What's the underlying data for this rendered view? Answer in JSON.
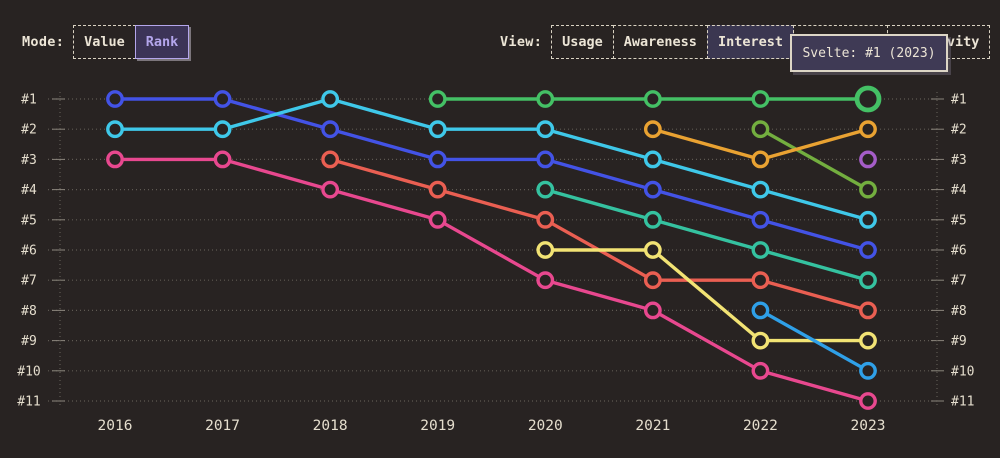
{
  "controls": {
    "mode": {
      "label": "Mode:",
      "options": [
        {
          "label": "Value",
          "selected": false
        },
        {
          "label": "Rank",
          "selected": true
        }
      ]
    },
    "view": {
      "label": "View:",
      "options": [
        {
          "label": "Usage",
          "selected": false
        },
        {
          "label": "Awareness",
          "selected": false
        },
        {
          "label": "Interest",
          "selected": true
        },
        {
          "label": "Retention",
          "selected": false
        },
        {
          "label": "Positivity",
          "selected": false
        }
      ]
    }
  },
  "tooltip": {
    "text": "Svelte: #1 (2023)"
  },
  "theme": {
    "background": "#282322",
    "text": "#ece5d6",
    "accent_purple": "#b4a6ec",
    "selected_mode_bg": "#3c3457",
    "selected_view_bg": "#3b3751",
    "tooltip_bg": "#3f3a55",
    "tooltip_border": "#ddd6c6",
    "gridline": "#5f5a53",
    "axis": "#8a857c"
  },
  "chart_data": {
    "type": "line",
    "subtype": "bump-rank-chart",
    "title": "",
    "xlabel": "",
    "ylabel": "",
    "x": [
      2016,
      2017,
      2018,
      2019,
      2020,
      2021,
      2022,
      2023
    ],
    "x_labels": [
      "2016",
      "2017",
      "2018",
      "2019",
      "2020",
      "2021",
      "2022",
      "2023"
    ],
    "rank_labels": [
      "#1",
      "#2",
      "#3",
      "#4",
      "#5",
      "#6",
      "#7",
      "#8",
      "#9",
      "#10",
      "#11"
    ],
    "ylim": [
      1,
      11
    ],
    "grid": "dotted-horizontal-rows",
    "legend": "none",
    "highlighted_point": {
      "series": "svelte",
      "year": 2023,
      "rank": 1
    },
    "series": [
      {
        "name": "pink",
        "color": "#e8488f",
        "points": [
          [
            2016,
            3
          ],
          [
            2017,
            3
          ],
          [
            2018,
            4
          ],
          [
            2019,
            5
          ],
          [
            2020,
            7
          ],
          [
            2021,
            8
          ],
          [
            2022,
            10
          ],
          [
            2023,
            11
          ]
        ]
      },
      {
        "name": "tomato",
        "color": "#ea5f52",
        "points": [
          [
            2018,
            3
          ],
          [
            2019,
            4
          ],
          [
            2020,
            5
          ],
          [
            2021,
            7
          ],
          [
            2022,
            7
          ],
          [
            2023,
            8
          ]
        ]
      },
      {
        "name": "royal-blue",
        "color": "#4353e6",
        "points": [
          [
            2016,
            1
          ],
          [
            2017,
            1
          ],
          [
            2018,
            2
          ],
          [
            2019,
            3
          ],
          [
            2020,
            3
          ],
          [
            2021,
            4
          ],
          [
            2022,
            5
          ],
          [
            2023,
            6
          ]
        ]
      },
      {
        "name": "cyan",
        "color": "#3fc8e9",
        "points": [
          [
            2016,
            2
          ],
          [
            2017,
            2
          ],
          [
            2018,
            1
          ],
          [
            2019,
            2
          ],
          [
            2020,
            2
          ],
          [
            2021,
            3
          ],
          [
            2022,
            4
          ],
          [
            2023,
            5
          ]
        ]
      },
      {
        "name": "teal",
        "color": "#35c2a0",
        "points": [
          [
            2020,
            4
          ],
          [
            2021,
            5
          ],
          [
            2022,
            6
          ],
          [
            2023,
            7
          ]
        ]
      },
      {
        "name": "yellow",
        "color": "#f2e374",
        "points": [
          [
            2020,
            6
          ],
          [
            2021,
            6
          ],
          [
            2022,
            9
          ],
          [
            2023,
            9
          ]
        ]
      },
      {
        "name": "sky-blue",
        "color": "#2fa0e8",
        "points": [
          [
            2022,
            8
          ],
          [
            2023,
            10
          ]
        ]
      },
      {
        "name": "olive-green",
        "color": "#73ae3f",
        "points": [
          [
            2022,
            2
          ],
          [
            2023,
            4
          ]
        ]
      },
      {
        "name": "amber",
        "color": "#e9a232",
        "points": [
          [
            2021,
            2
          ],
          [
            2022,
            3
          ],
          [
            2023,
            2
          ]
        ]
      },
      {
        "name": "purple",
        "color": "#a55dc8",
        "points": [
          [
            2023,
            3
          ]
        ]
      },
      {
        "name": "svelte",
        "color": "#44c065",
        "points": [
          [
            2019,
            1
          ],
          [
            2020,
            1
          ],
          [
            2021,
            1
          ],
          [
            2022,
            1
          ],
          [
            2023,
            1
          ]
        ],
        "highlight_last_point": true
      }
    ]
  }
}
